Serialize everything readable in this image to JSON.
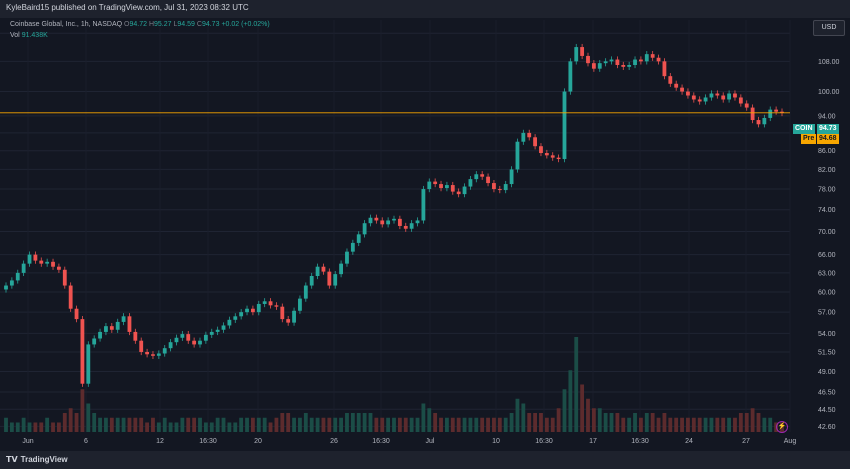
{
  "header": {
    "publisher_line": "KyleBaird15 published on TradingView.com, Jul 31, 2023 08:32 UTC",
    "symbol_desc": "Coinbase Global, Inc., 1h, NASDAQ",
    "open_label": "O",
    "open": "94.72",
    "high_label": "H",
    "high": "95.27",
    "low_label": "L",
    "low": "94.59",
    "close_label": "C",
    "close": "94.73",
    "change": "+0.02 (+0.02%)",
    "vol_label": "Vol",
    "vol_value": "91.438K",
    "currency": "USD"
  },
  "price_badges": {
    "coin_label": "COIN",
    "coin_value": "94.73",
    "pre_label": "Pre",
    "pre_value": "94.68"
  },
  "footer": {
    "brand": "TradingView",
    "logo_icon": "tradingview-logo-icon",
    "lightning_icon": "lightning-icon"
  },
  "colors": {
    "up": "#26a69a",
    "down": "#ef5350",
    "background": "#131722",
    "price_line": "#f7a600"
  },
  "chart_data": {
    "type": "candlestick",
    "scale": "log",
    "y_ticks": [
      116.0,
      108.0,
      100.0,
      94.0,
      90.0,
      86.0,
      82.0,
      78.0,
      74.0,
      70.0,
      66.0,
      63.0,
      60.0,
      57.0,
      54.0,
      51.5,
      49.0,
      46.5,
      44.5,
      42.6
    ],
    "x_ticks": [
      "Jun",
      "6",
      "12",
      "16:30",
      "20",
      "26",
      "16:30",
      "Jul",
      "10",
      "16:30",
      "17",
      "16:30",
      "24",
      "27",
      "Aug"
    ],
    "current_price": 94.73,
    "close_series": [
      61.0,
      61.8,
      63.0,
      64.5,
      66.0,
      65.0,
      64.5,
      64.8,
      64.0,
      63.5,
      61.0,
      57.5,
      56.0,
      47.5,
      52.5,
      53.3,
      54.2,
      55.0,
      54.5,
      55.6,
      56.4,
      54.2,
      53.0,
      51.5,
      51.2,
      51.0,
      51.3,
      52.0,
      52.8,
      53.4,
      53.9,
      53.0,
      52.5,
      53.0,
      53.8,
      54.2,
      54.5,
      55.1,
      55.9,
      56.4,
      57.0,
      57.5,
      57.0,
      58.2,
      58.6,
      58.0,
      57.8,
      56.0,
      55.5,
      57.2,
      59.0,
      61.0,
      62.5,
      64.0,
      63.2,
      61.0,
      62.8,
      64.5,
      66.5,
      68.0,
      69.5,
      71.5,
      72.5,
      72.0,
      71.3,
      72.0,
      72.3,
      71.0,
      70.5,
      71.5,
      72.0,
      78.0,
      79.5,
      79.0,
      78.2,
      78.8,
      77.5,
      77.0,
      78.5,
      80.0,
      81.0,
      80.5,
      79.2,
      78.0,
      77.8,
      79.0,
      82.0,
      88.0,
      90.0,
      89.0,
      87.0,
      85.5,
      85.0,
      84.5,
      84.2,
      100.0,
      108.0,
      112.0,
      109.5,
      107.5,
      106.0,
      107.5,
      108.0,
      108.5,
      107.0,
      106.5,
      107.0,
      108.5,
      108.0,
      110.0,
      109.0,
      108.0,
      104.0,
      102.0,
      101.0,
      100.0,
      99.0,
      98.0,
      97.5,
      98.5,
      99.5,
      99.0,
      98.0,
      99.5,
      98.5,
      97.0,
      96.0,
      93.0,
      92.0,
      93.5,
      95.5,
      95.0,
      94.7
    ],
    "volume_series": [
      3,
      2,
      2,
      3,
      2,
      2,
      2,
      3,
      2,
      2,
      4,
      5,
      4,
      9,
      6,
      4,
      3,
      3,
      3,
      3,
      3,
      3,
      3,
      3,
      2,
      3,
      2,
      3,
      2,
      2,
      3,
      3,
      3,
      3,
      2,
      2,
      3,
      3,
      2,
      2,
      3,
      3,
      3,
      3,
      3,
      2,
      3,
      4,
      4,
      3,
      3,
      4,
      3,
      3,
      3,
      3,
      3,
      3,
      4,
      4,
      4,
      4,
      4,
      3,
      3,
      3,
      3,
      3,
      3,
      3,
      3,
      6,
      5,
      4,
      3,
      3,
      3,
      3,
      3,
      3,
      3,
      3,
      3,
      3,
      3,
      3,
      4,
      7,
      6,
      4,
      4,
      4,
      3,
      3,
      5,
      9,
      13,
      20,
      10,
      7,
      5,
      5,
      4,
      4,
      4,
      3,
      3,
      4,
      3,
      4,
      4,
      3,
      4,
      3,
      3,
      3,
      3,
      3,
      3,
      3,
      3,
      3,
      3,
      3,
      3,
      4,
      4,
      5,
      4,
      3,
      3,
      2,
      2
    ]
  }
}
